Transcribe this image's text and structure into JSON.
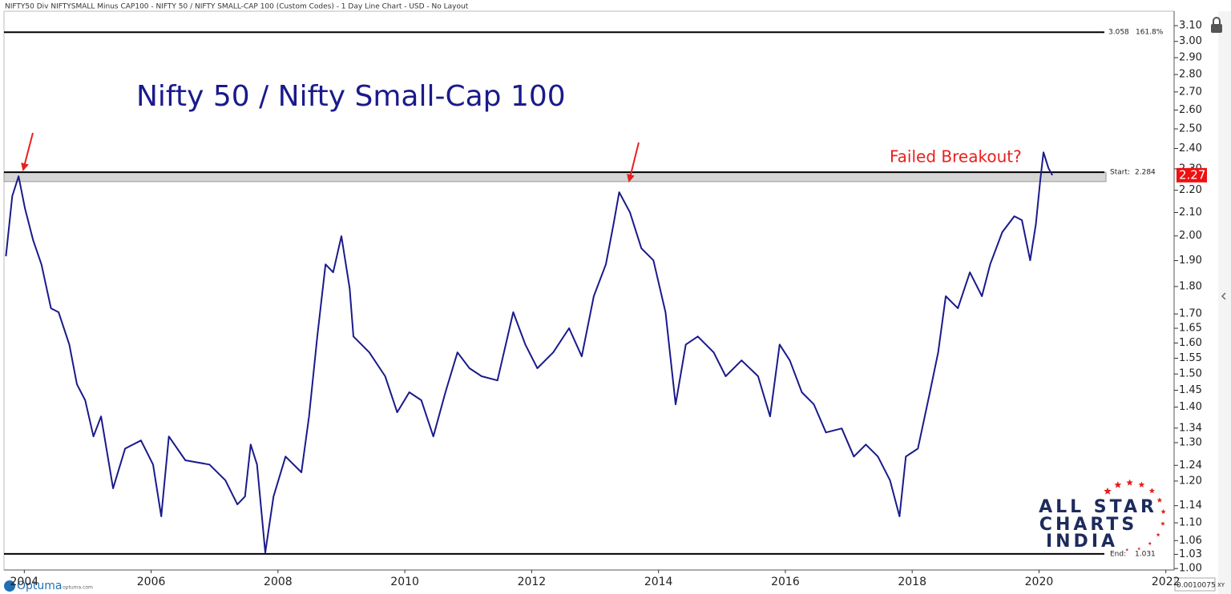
{
  "header": "NIFTY50 Div NIFTYSMALL Minus CAP100 - NIFTY 50 / NIFTY SMALL-CAP 100 (Custom Codes) - 1 Day Line Chart - USD - No Layout",
  "chart_data": {
    "type": "line",
    "title": "Nifty 50 / Nifty Small-Cap 100",
    "annotation": "Failed Breakout?",
    "ylog": true,
    "xlim": [
      2003.68,
      2022.13
    ],
    "ylim": [
      0.997,
      3.227
    ],
    "xticks": [
      2004,
      2006,
      2008,
      2010,
      2012,
      2014,
      2016,
      2018,
      2020,
      2022
    ],
    "yticks": [
      {
        "value": 3.1,
        "label": "3.10"
      },
      {
        "value": 3.0,
        "label": "3.00"
      },
      {
        "value": 2.9,
        "label": "2.90"
      },
      {
        "value": 2.8,
        "label": "2.80"
      },
      {
        "value": 2.7,
        "label": "2.70"
      },
      {
        "value": 2.6,
        "label": "2.60"
      },
      {
        "value": 2.5,
        "label": "2.50"
      },
      {
        "value": 2.4,
        "label": "2.40"
      },
      {
        "value": 2.3,
        "label": "2.30"
      },
      {
        "value": 2.2,
        "label": "2.20"
      },
      {
        "value": 2.1,
        "label": "2.10"
      },
      {
        "value": 2.0,
        "label": "2.00"
      },
      {
        "value": 1.9,
        "label": "1.90"
      },
      {
        "value": 1.8,
        "label": "1.80"
      },
      {
        "value": 1.7,
        "label": "1.70"
      },
      1.65,
      {
        "value": 1.6,
        "label": "1.60"
      },
      1.55,
      {
        "value": 1.5,
        "label": "1.50"
      },
      1.45,
      {
        "value": 1.4,
        "label": "1.40"
      },
      1.34,
      {
        "value": 1.3,
        "label": "1.30"
      },
      1.24,
      {
        "value": 1.2,
        "label": "1.20"
      },
      1.14,
      {
        "value": 1.1,
        "label": "1.10"
      },
      1.06,
      1.03,
      {
        "value": 1.0,
        "label": "1.00"
      }
    ],
    "series": [
      {
        "color": "#1a1a8c",
        "x": [
          2003.71,
          2003.81,
          2003.91,
          2004.01,
          2004.14,
          2004.27,
          2004.42,
          2004.54,
          2004.71,
          2004.83,
          2004.96,
          2005.09,
          2005.21,
          2005.4,
          2005.59,
          2005.84,
          2006.03,
          2006.16,
          2006.28,
          2006.54,
          2006.92,
          2007.17,
          2007.36,
          2007.48,
          2007.57,
          2007.67,
          2007.8,
          2007.93,
          2008.12,
          2008.37,
          2008.49,
          2008.62,
          2008.75,
          2008.87,
          2009.0,
          2009.13,
          2009.19,
          2009.44,
          2009.69,
          2009.88,
          2010.07,
          2010.26,
          2010.45,
          2010.64,
          2010.83,
          2011.02,
          2011.21,
          2011.46,
          2011.71,
          2011.9,
          2012.09,
          2012.34,
          2012.59,
          2012.79,
          2012.98,
          2013.17,
          2013.29,
          2013.38,
          2013.55,
          2013.73,
          2013.92,
          2014.11,
          2014.27,
          2014.43,
          2014.62,
          2014.87,
          2015.06,
          2015.31,
          2015.57,
          2015.76,
          2015.91,
          2016.07,
          2016.26,
          2016.45,
          2016.64,
          2016.89,
          2017.08,
          2017.27,
          2017.46,
          2017.65,
          2017.8,
          2017.9,
          2018.09,
          2018.28,
          2018.41,
          2018.53,
          2018.72,
          2018.91,
          2019.1,
          2019.23,
          2019.42,
          2019.61,
          2019.73,
          2019.86,
          2019.95,
          2020.02,
          2020.07,
          2020.15,
          2020.21
        ],
        "values": [
          1.917,
          2.173,
          2.265,
          2.119,
          1.982,
          1.885,
          1.72,
          1.706,
          1.595,
          1.468,
          1.42,
          1.317,
          1.373,
          1.182,
          1.284,
          1.306,
          1.242,
          1.115,
          1.317,
          1.253,
          1.242,
          1.202,
          1.143,
          1.162,
          1.295,
          1.242,
          1.034,
          1.162,
          1.263,
          1.222,
          1.373,
          1.622,
          1.885,
          1.854,
          1.999,
          1.793,
          1.622,
          1.569,
          1.493,
          1.385,
          1.444,
          1.42,
          1.317,
          1.444,
          1.569,
          1.518,
          1.493,
          1.48,
          1.706,
          1.595,
          1.518,
          1.569,
          1.65,
          1.556,
          1.764,
          1.885,
          2.049,
          2.191,
          2.101,
          1.949,
          1.901,
          1.706,
          1.408,
          1.595,
          1.622,
          1.569,
          1.493,
          1.543,
          1.493,
          1.373,
          1.595,
          1.543,
          1.444,
          1.408,
          1.328,
          1.339,
          1.263,
          1.295,
          1.263,
          1.202,
          1.115,
          1.263,
          1.284,
          1.444,
          1.569,
          1.764,
          1.72,
          1.854,
          1.764,
          1.885,
          2.016,
          2.084,
          2.067,
          1.901,
          2.049,
          2.246,
          2.381,
          2.303,
          2.27
        ]
      }
    ],
    "zone": [
      2.24,
      2.284
    ],
    "levels": [
      {
        "label": "161.8%",
        "value": 3.058
      },
      {
        "label": "Start:",
        "value": 2.284
      },
      {
        "label": "End:",
        "value": 1.031
      }
    ],
    "last_price": 2.27
  },
  "watermark": [
    "ALL STAR",
    "CHARTS",
    "INDIA"
  ],
  "footer": {
    "brand": "Optuma",
    "url": "optuma.com",
    "scale_value": "0.0010075",
    "scale_mode": "XY"
  }
}
